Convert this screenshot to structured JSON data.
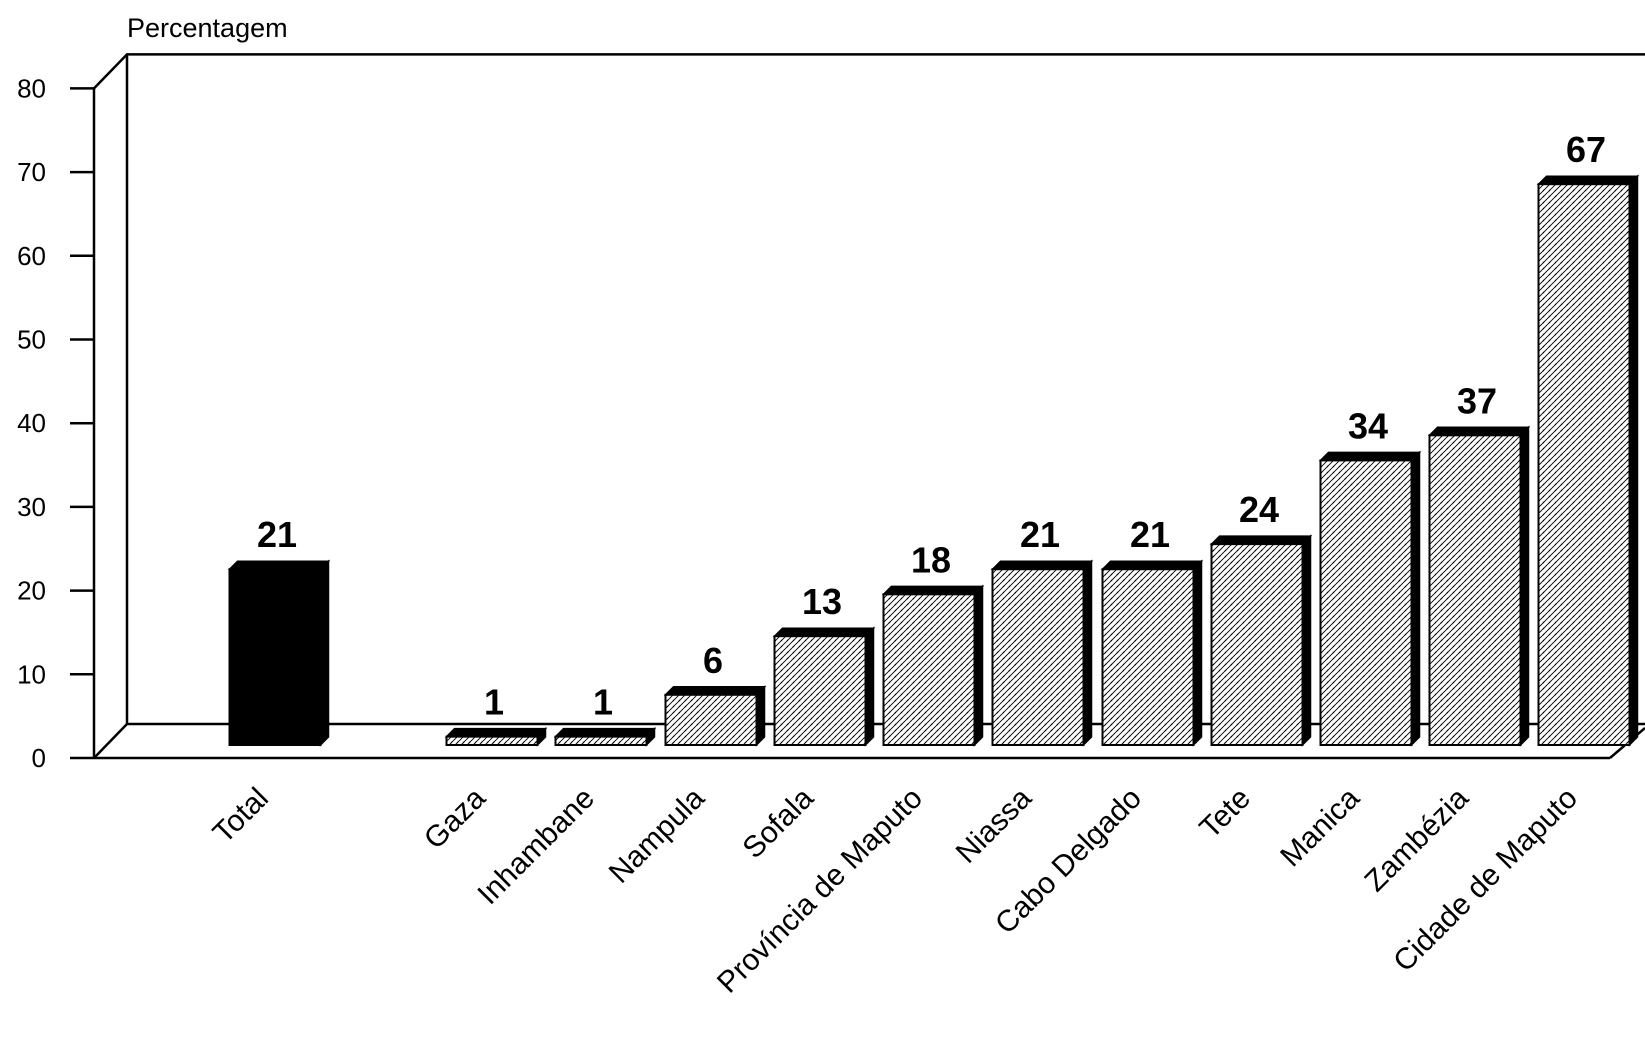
{
  "chart_data": {
    "type": "bar",
    "ylabel": "Percentagem",
    "xlabel": "",
    "ylim": [
      0,
      80
    ],
    "yticks": [
      0,
      10,
      20,
      30,
      40,
      50,
      60,
      70,
      80
    ],
    "grid": false,
    "style": "3d-bars",
    "colors": {
      "highlight": "#000000",
      "pattern": "hatched"
    },
    "categories": [
      "Total",
      "Gaza",
      "Inhambane",
      "Nampula",
      "Sofala",
      "Província de Maputo",
      "Niassa",
      "Cabo Delgado",
      "Tete",
      "Manica",
      "Zambézia",
      "Cidade de Maputo"
    ],
    "values": [
      21,
      1,
      1,
      6,
      13,
      18,
      21,
      21,
      24,
      34,
      37,
      67
    ],
    "value_labels": [
      "21",
      "1",
      "1",
      "6",
      "13",
      "18",
      "21",
      "21",
      "24",
      "34",
      "37",
      "67"
    ]
  }
}
